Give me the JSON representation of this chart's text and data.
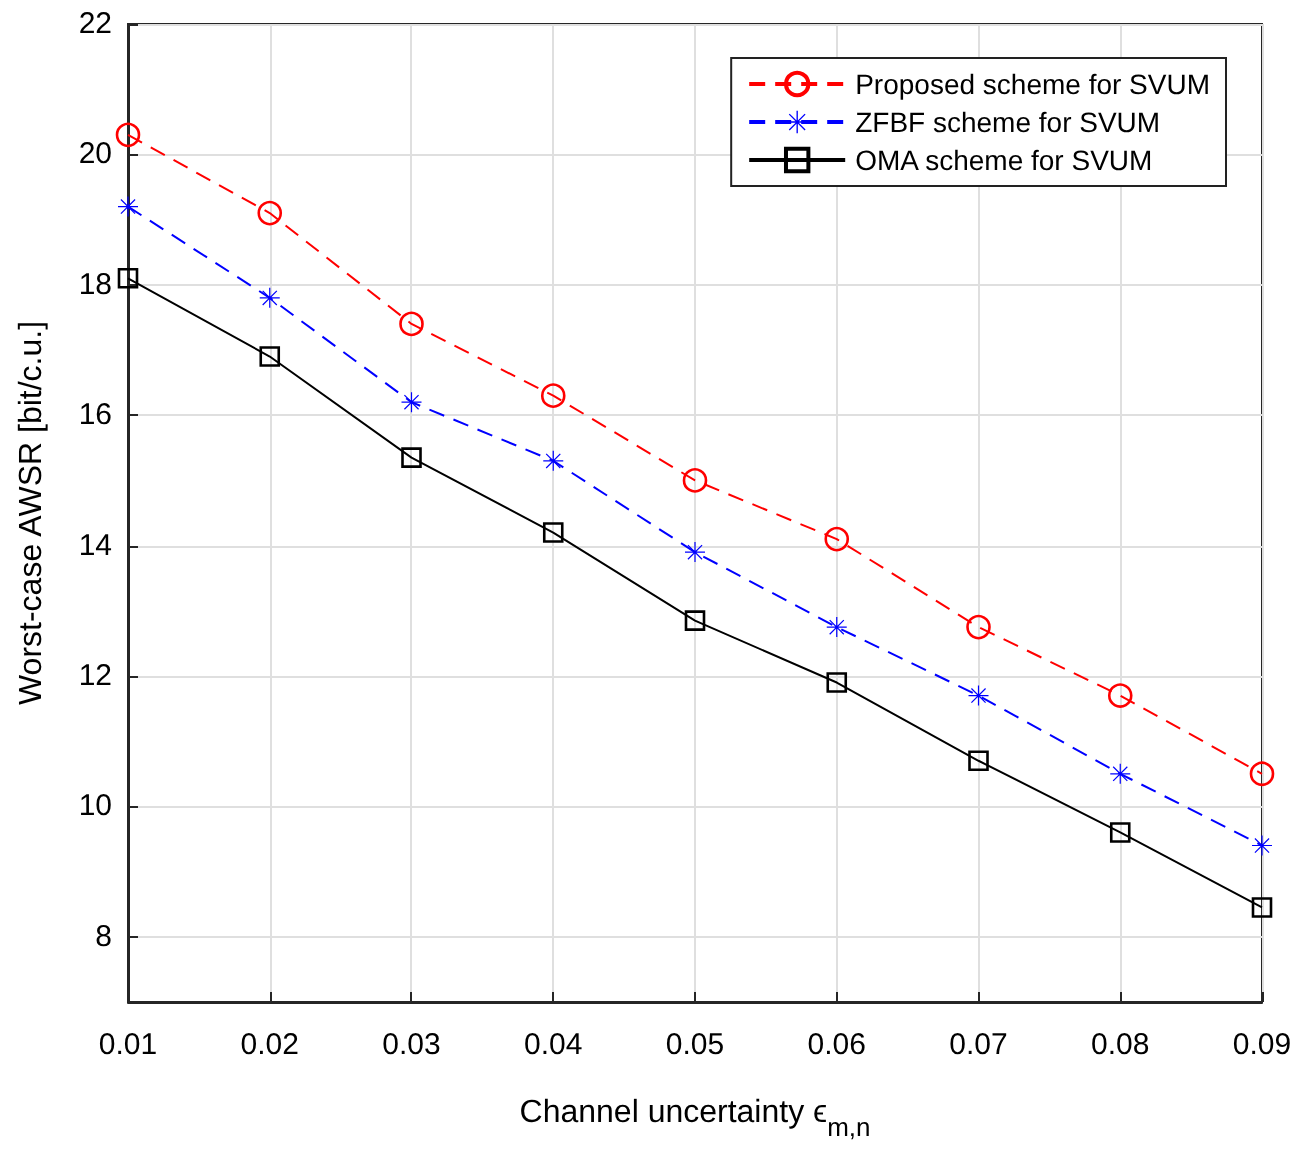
{
  "chart_data": {
    "type": "line",
    "xlabel": "Channel uncertainty ϵ$_{m,n}$",
    "ylabel": "Worst-case AWSR [bit/c.u.]",
    "x": [
      0.01,
      0.02,
      0.03,
      0.04,
      0.05,
      0.06,
      0.07,
      0.08,
      0.09
    ],
    "series": [
      {
        "name": "Proposed scheme for SVUM",
        "color": "#ff0000",
        "marker": "circle",
        "line_style": "dashed",
        "values": [
          20.3,
          19.1,
          17.4,
          16.3,
          15.0,
          14.1,
          12.75,
          11.7,
          10.5
        ]
      },
      {
        "name": "ZFBF scheme for SVUM",
        "color": "#0000ff",
        "marker": "star",
        "line_style": "dashed",
        "values": [
          19.2,
          17.8,
          16.2,
          15.3,
          13.9,
          12.75,
          11.7,
          10.5,
          9.4
        ]
      },
      {
        "name": "OMA scheme for SVUM",
        "color": "#000000",
        "marker": "square",
        "line_style": "solid",
        "values": [
          18.1,
          16.9,
          15.35,
          14.2,
          12.85,
          11.9,
          10.7,
          9.6,
          8.45
        ]
      }
    ],
    "xlim": [
      0.01,
      0.09
    ],
    "xticks": [
      0.01,
      0.02,
      0.03,
      0.04,
      0.05,
      0.06,
      0.07,
      0.08,
      0.09
    ],
    "ylim": [
      7,
      22
    ],
    "yticks": [
      8,
      10,
      12,
      14,
      16,
      18,
      20,
      22
    ],
    "grid": true,
    "legend": "top right"
  }
}
